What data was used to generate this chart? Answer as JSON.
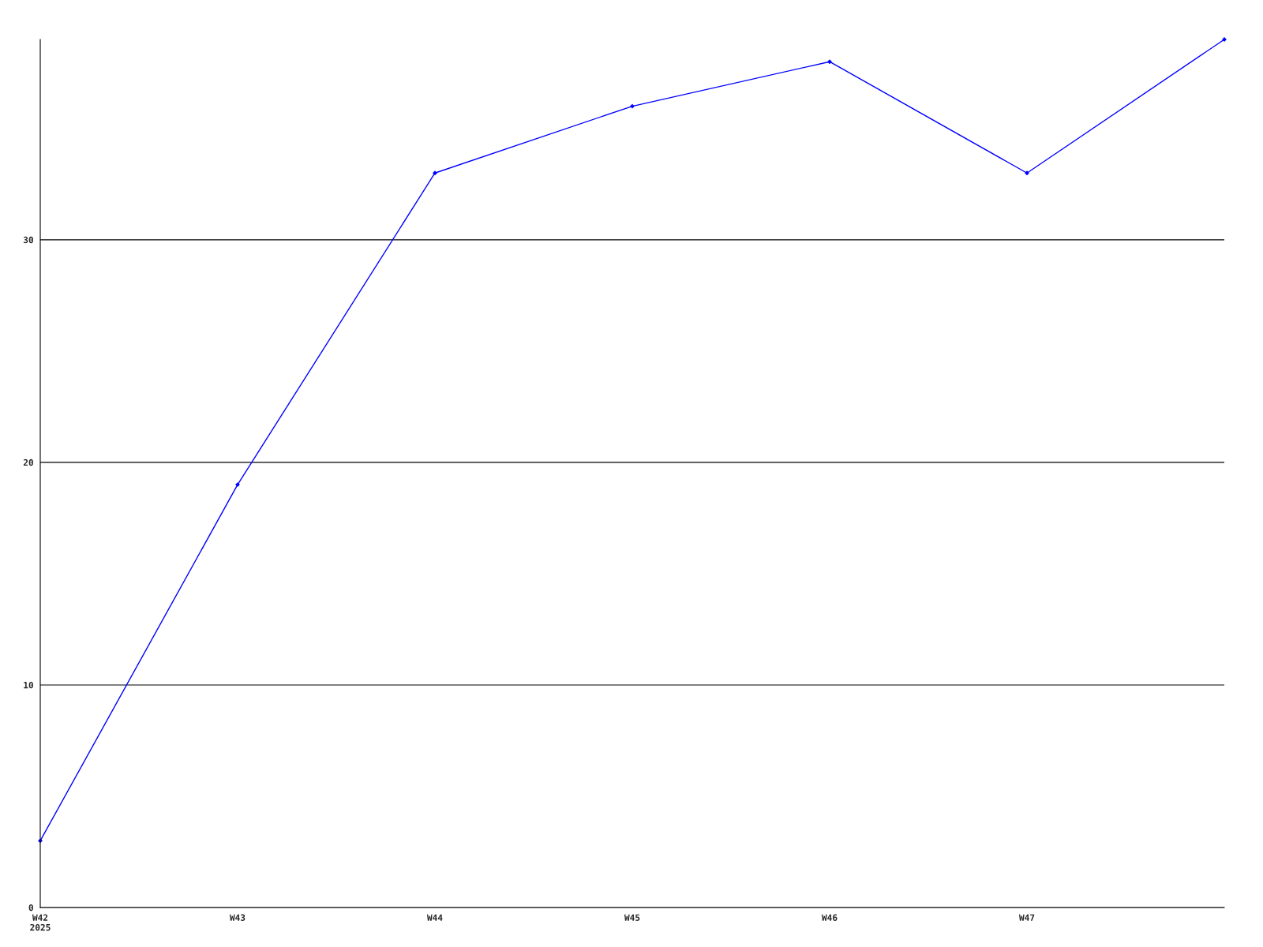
{
  "chart_data": {
    "type": "line",
    "categories": [
      "W42\n2025",
      "W43",
      "W44",
      "W45",
      "W46",
      "W47",
      null
    ],
    "series": [
      {
        "color": "#0000ff",
        "values": [
          3,
          19,
          33,
          36,
          38,
          33,
          39
        ]
      }
    ],
    "ylim": [
      0,
      39
    ],
    "yticks": [
      0,
      10,
      20,
      30
    ],
    "grid": "y",
    "marker": "diamond",
    "line_style": "solid",
    "legend": false
  }
}
